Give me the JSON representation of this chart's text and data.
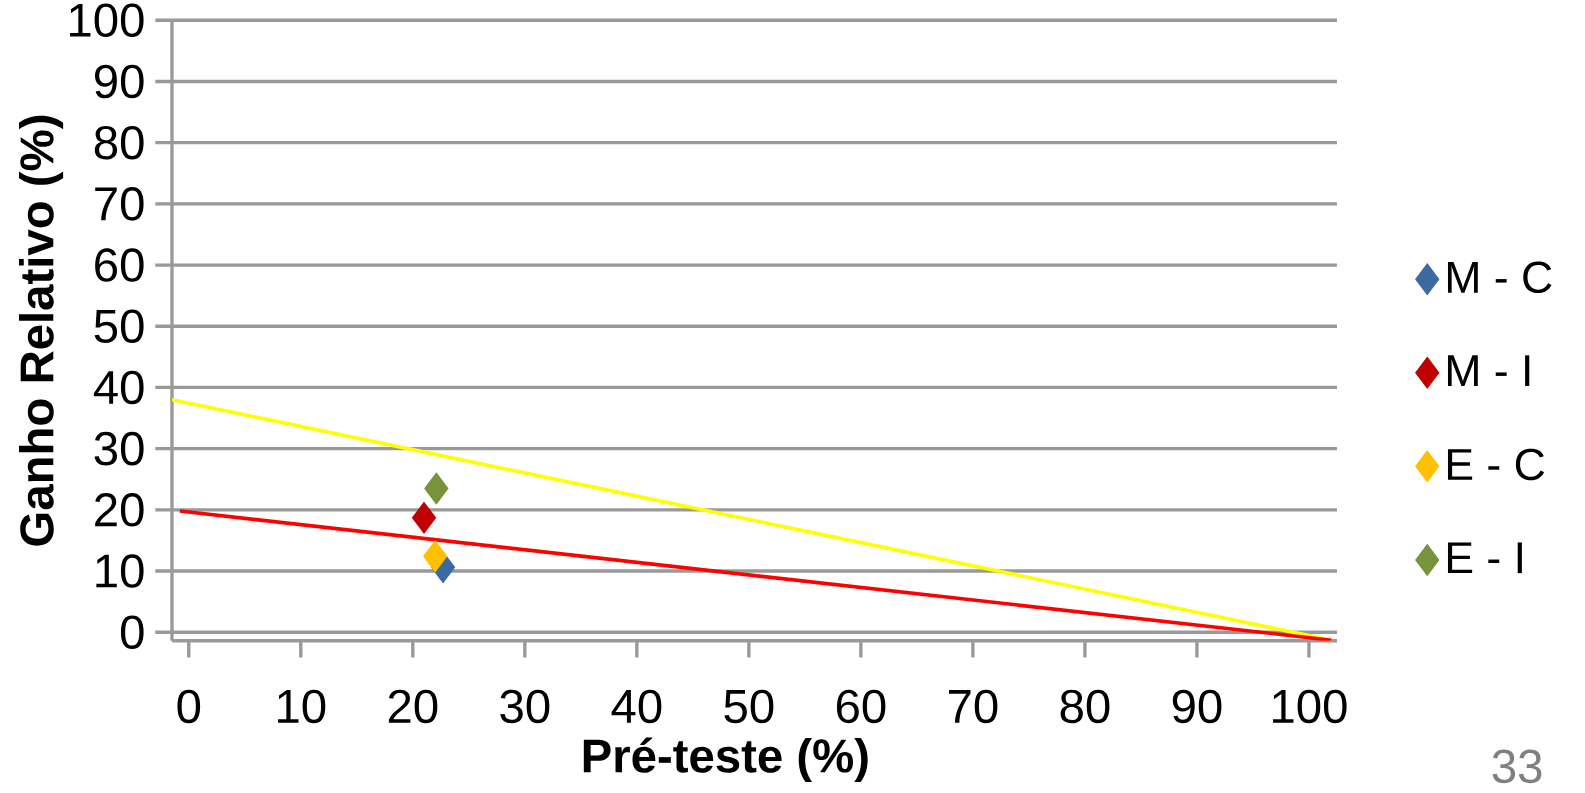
{
  "chart_data": {
    "type": "scatter",
    "xlabel": "Pré-teste (%)",
    "ylabel": "Ganho Relativo (%)",
    "xlim": [
      -1.5,
      102.5
    ],
    "ylim": [
      -1.4,
      100
    ],
    "xticks": [
      0,
      10,
      20,
      30,
      40,
      50,
      60,
      70,
      80,
      90,
      100
    ],
    "yticks": [
      0,
      10,
      20,
      30,
      40,
      50,
      60,
      70,
      80,
      90,
      100
    ],
    "grid": "y",
    "legend": "right",
    "marker": "diamond",
    "series": [
      {
        "name": "M - C",
        "color": "#3a6aa0",
        "x": [
          22.7
        ],
        "values": [
          10.6
        ]
      },
      {
        "name": "M - I",
        "color": "#c00000",
        "x": [
          21.0
        ],
        "values": [
          18.7
        ]
      },
      {
        "name": "E - C",
        "color": "#ffc000",
        "x": [
          22.0
        ],
        "values": [
          12.4
        ]
      },
      {
        "name": "E - I",
        "color": "#77933c",
        "x": [
          22.1
        ],
        "values": [
          23.5
        ]
      },
      {
        "type": "line",
        "color": "#ffff00",
        "line_style": "solid",
        "marker": "none",
        "x": [
          -1.5,
          102.0
        ],
        "values": [
          38.0,
          -1.3
        ]
      },
      {
        "type": "line",
        "color": "#ff0000",
        "line_style": "solid",
        "marker": "none",
        "x": [
          -0.8,
          102.0
        ],
        "values": [
          19.8,
          -1.3
        ]
      }
    ],
    "annotations": [
      "33"
    ]
  }
}
